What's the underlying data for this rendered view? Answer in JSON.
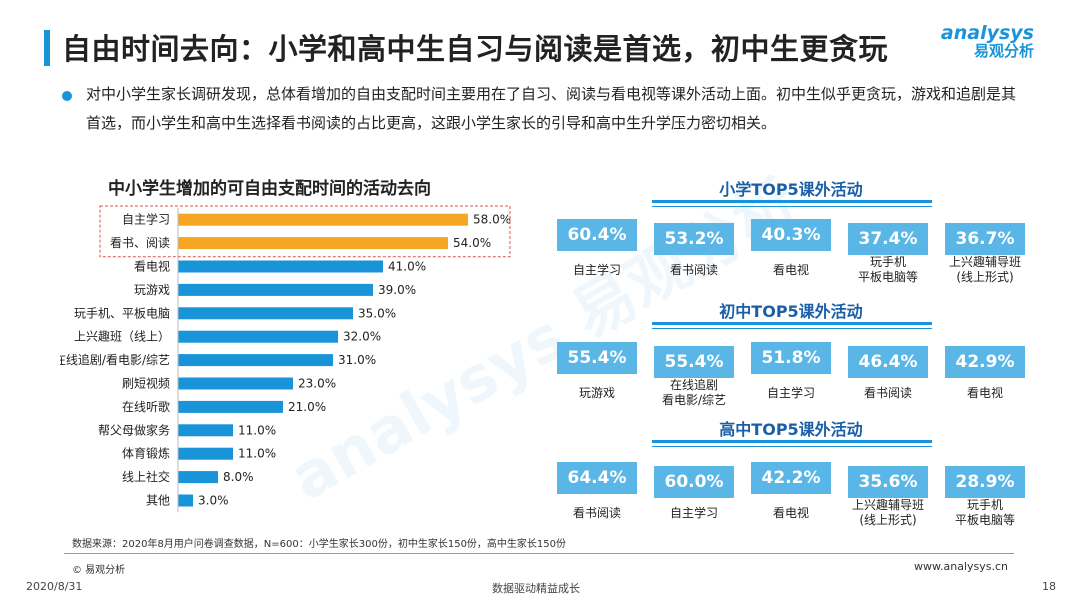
{
  "header": {
    "title": "自由时间去向：小学和高中生自习与阅读是首选，初中生更贪玩",
    "logo_en": "analysys",
    "logo_cn": "易观分析"
  },
  "summary": "对中小学生家长调研发现，总体看增加的自由支配时间主要用在了自习、阅读与看电视等课外活动上面。初中生似乎更贪玩，游戏和追剧是其首选，而小学生和高中生选择看书阅读的占比更高，这跟小学生家长的引导和高中生升学压力密切相关。",
  "watermark": "analysys 易观分析",
  "chart_data": [
    {
      "type": "bar",
      "orientation": "horizontal",
      "title": "中小学生增加的可自由支配时间的活动去向",
      "categories": [
        "自主学习",
        "看书、阅读",
        "看电视",
        "玩游戏",
        "玩手机、平板电脑",
        "上兴趣班（线上）",
        "在线追剧/看电影/综艺",
        "刷短视频",
        "在线听歌",
        "帮父母做家务",
        "体育锻炼",
        "线上社交",
        "其他"
      ],
      "values": [
        58.0,
        54.0,
        41.0,
        39.0,
        35.0,
        32.0,
        31.0,
        23.0,
        21.0,
        11.0,
        11.0,
        8.0,
        3.0
      ],
      "value_labels": [
        "58.0%",
        "54.0%",
        "41.0%",
        "39.0%",
        "35.0%",
        "32.0%",
        "31.0%",
        "23.0%",
        "21.0%",
        "11.0%",
        "11.0%",
        "8.0%",
        "3.0%"
      ],
      "unit": "%",
      "highlighted": [
        0,
        1
      ],
      "colors": {
        "highlight": "#f5a623",
        "default": "#1a94d8",
        "highlight_box": "#e05050"
      },
      "xlim": [
        0,
        60
      ]
    }
  ],
  "groups": [
    {
      "title": "小学TOP5课外活动",
      "items": [
        {
          "value": "60.4%",
          "label": [
            "自主学习"
          ]
        },
        {
          "value": "53.2%",
          "label": [
            "看书阅读"
          ]
        },
        {
          "value": "40.3%",
          "label": [
            "看电视"
          ]
        },
        {
          "value": "37.4%",
          "label": [
            "玩手机",
            "平板电脑等"
          ]
        },
        {
          "value": "36.7%",
          "label": [
            "上兴趣辅导班",
            "(线上形式)"
          ]
        }
      ]
    },
    {
      "title": "初中TOP5课外活动",
      "items": [
        {
          "value": "55.4%",
          "label": [
            "玩游戏"
          ]
        },
        {
          "value": "55.4%",
          "label": [
            "在线追剧",
            "看电影/综艺"
          ]
        },
        {
          "value": "51.8%",
          "label": [
            "自主学习"
          ]
        },
        {
          "value": "46.4%",
          "label": [
            "看书阅读"
          ]
        },
        {
          "value": "42.9%",
          "label": [
            "看电视"
          ]
        }
      ]
    },
    {
      "title": "高中TOP5课外活动",
      "items": [
        {
          "value": "64.4%",
          "label": [
            "看书阅读"
          ]
        },
        {
          "value": "60.0%",
          "label": [
            "自主学习"
          ]
        },
        {
          "value": "42.2%",
          "label": [
            "看电视"
          ]
        },
        {
          "value": "35.6%",
          "label": [
            "上兴趣辅导班",
            "(线上形式)"
          ]
        },
        {
          "value": "28.9%",
          "label": [
            "玩手机",
            "平板电脑等"
          ]
        }
      ]
    }
  ],
  "footer": {
    "source": "数据来源：2020年8月用户问卷调查数据，N=600：小学生家长300份，初中生家长150份，高中生家长150份",
    "copyright": "© 易观分析",
    "site": "www.analysys.cn",
    "date": "2020/8/31",
    "slogan": "数据驱动精益成长",
    "page": "18"
  }
}
